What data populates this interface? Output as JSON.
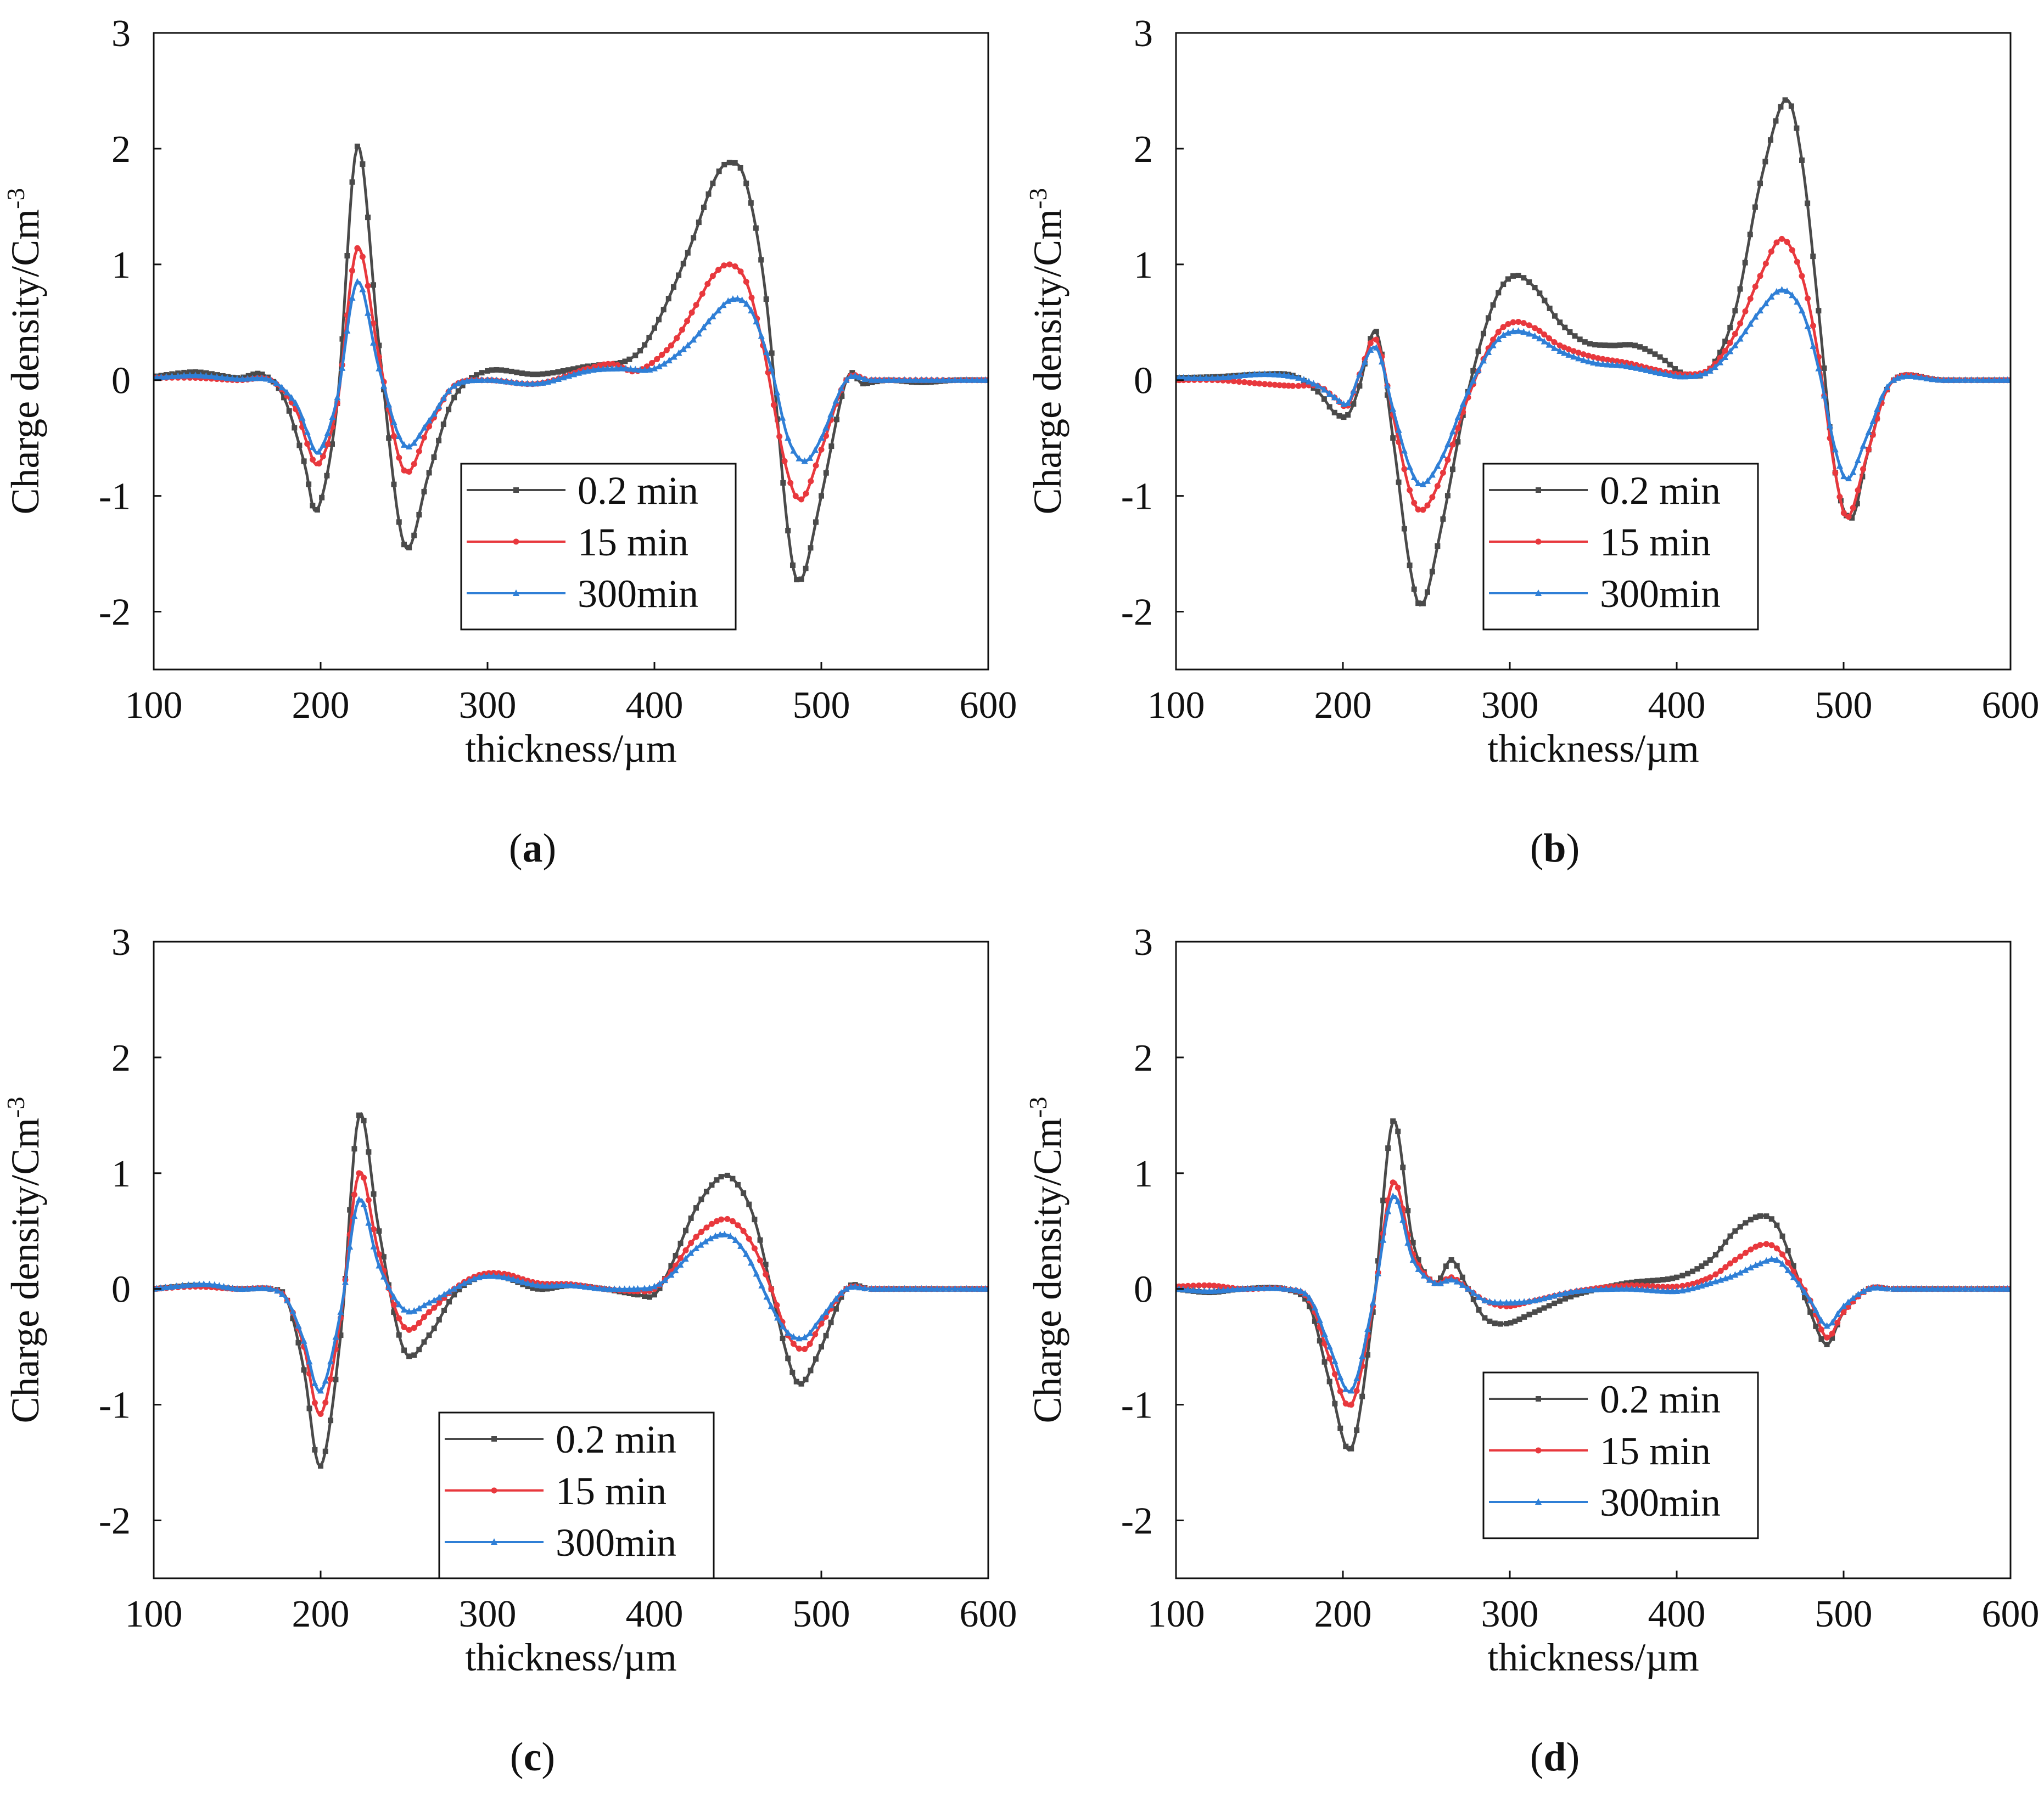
{
  "figure": {
    "legend_labels": [
      "0.2 min",
      "15  min",
      "300min"
    ],
    "colors": {
      "s0": "#4a4a4a",
      "s1": "#e8383d",
      "s2": "#2f7fd6",
      "frame": "#111111"
    }
  },
  "chart_data": [
    {
      "panel": "a",
      "caption": {
        "open": "(",
        "letter": "a",
        "close": ")"
      },
      "type": "line",
      "xlabel": "thickness/µm",
      "ylabel": "Charge density/Cm-3",
      "ylabel_main": "Charge density/Cm",
      "ylabel_sup": "-3",
      "xlim": [
        100,
        600
      ],
      "ylim": [
        -2.5,
        3
      ],
      "xticks": [
        100,
        200,
        300,
        400,
        500,
        600
      ],
      "yticks": [
        3,
        2,
        1,
        0,
        -1,
        -2
      ],
      "legend_position": "lower-right",
      "series": [
        {
          "name": "0.2 min",
          "color": "#4a4a4a",
          "marker": "square",
          "x": [
            100,
            125,
            150,
            165,
            178,
            190,
            198,
            210,
            222,
            235,
            250,
            265,
            280,
            300,
            330,
            360,
            385,
            400,
            420,
            435,
            445,
            455,
            467,
            480,
            488,
            500,
            515,
            525,
            540,
            560,
            580,
            600
          ],
          "y": [
            0.03,
            0.07,
            0.02,
            0.05,
            -0.15,
            -0.7,
            -1.12,
            -0.2,
            2.02,
            0.3,
            -1.42,
            -0.8,
            -0.15,
            0.08,
            0.05,
            0.12,
            0.18,
            0.45,
            1.1,
            1.7,
            1.88,
            1.7,
            0.7,
            -1.3,
            -1.72,
            -1.0,
            0.0,
            -0.03,
            0.0,
            -0.02,
            0.0,
            0.0
          ]
        },
        {
          "name": "15  min",
          "color": "#e8383d",
          "marker": "circle",
          "x": [
            100,
            125,
            150,
            170,
            185,
            192,
            199,
            210,
            222,
            235,
            250,
            265,
            280,
            300,
            330,
            360,
            375,
            390,
            410,
            425,
            435,
            445,
            455,
            465,
            478,
            488,
            500,
            515,
            530,
            560,
            600
          ],
          "y": [
            0.02,
            0.02,
            0.0,
            0.0,
            -0.25,
            -0.55,
            -0.72,
            -0.2,
            1.14,
            0.2,
            -0.78,
            -0.4,
            -0.05,
            0.0,
            -0.03,
            0.1,
            0.14,
            0.08,
            0.3,
            0.65,
            0.9,
            1.0,
            0.85,
            0.3,
            -0.7,
            -1.03,
            -0.6,
            0.0,
            0.0,
            0.0,
            0.0
          ]
        },
        {
          "name": "300min",
          "color": "#2f7fd6",
          "marker": "triangle",
          "x": [
            100,
            125,
            150,
            170,
            185,
            192,
            199,
            210,
            222,
            235,
            250,
            265,
            280,
            300,
            330,
            360,
            380,
            400,
            420,
            435,
            447,
            458,
            470,
            480,
            490,
            500,
            515,
            530,
            560,
            600
          ],
          "y": [
            0.02,
            0.04,
            0.01,
            0.0,
            -0.2,
            -0.45,
            -0.62,
            -0.15,
            0.85,
            0.1,
            -0.56,
            -0.35,
            -0.05,
            0.0,
            -0.03,
            0.08,
            0.1,
            0.1,
            0.3,
            0.55,
            0.7,
            0.6,
            0.1,
            -0.5,
            -0.7,
            -0.5,
            0.0,
            0.0,
            0.0,
            0.0
          ]
        }
      ]
    },
    {
      "panel": "b",
      "caption": {
        "open": "(",
        "letter": "b",
        "close": ")"
      },
      "type": "line",
      "xlabel": "thickness/µm",
      "ylabel": "Charge density/Cm-3",
      "ylabel_main": "Charge density/Cm",
      "ylabel_sup": "-3",
      "xlim": [
        100,
        600
      ],
      "ylim": [
        -2.5,
        3
      ],
      "xticks": [
        100,
        200,
        300,
        400,
        500,
        600
      ],
      "yticks": [
        3,
        2,
        1,
        0,
        -1,
        -2
      ],
      "legend_position": "lower-right",
      "series": [
        {
          "name": "0.2 min",
          "color": "#4a4a4a",
          "marker": "square",
          "x": [
            100,
            125,
            150,
            170,
            185,
            195,
            203,
            210,
            220,
            230,
            240,
            248,
            260,
            275,
            290,
            302,
            315,
            330,
            345,
            360,
            375,
            390,
            405,
            420,
            435,
            450,
            465,
            475,
            485,
            495,
            505,
            515,
            530,
            560,
            600
          ],
          "y": [
            0.02,
            0.03,
            0.05,
            0.04,
            -0.1,
            -0.28,
            -0.3,
            -0.05,
            0.42,
            -0.5,
            -1.6,
            -1.93,
            -1.2,
            -0.1,
            0.65,
            0.9,
            0.8,
            0.5,
            0.33,
            0.3,
            0.3,
            0.2,
            0.05,
            0.1,
            0.6,
            1.7,
            2.42,
            1.9,
            0.6,
            -0.8,
            -1.19,
            -0.6,
            0.0,
            0.0,
            0.0
          ]
        },
        {
          "name": "15  min",
          "color": "#e8383d",
          "marker": "circle",
          "x": [
            100,
            125,
            150,
            170,
            185,
            195,
            203,
            210,
            220,
            230,
            240,
            248,
            260,
            275,
            290,
            302,
            315,
            330,
            350,
            370,
            390,
            405,
            420,
            435,
            450,
            463,
            475,
            485,
            495,
            503,
            515,
            530,
            560,
            600
          ],
          "y": [
            0.0,
            0.0,
            -0.03,
            -0.05,
            -0.05,
            -0.15,
            -0.22,
            0.05,
            0.35,
            -0.3,
            -0.95,
            -1.12,
            -0.8,
            -0.15,
            0.35,
            0.5,
            0.45,
            0.3,
            0.2,
            0.15,
            0.08,
            0.05,
            0.1,
            0.4,
            0.9,
            1.22,
            0.9,
            0.2,
            -0.8,
            -1.18,
            -0.6,
            0.0,
            0.0,
            0.0
          ]
        },
        {
          "name": "300min",
          "color": "#2f7fd6",
          "marker": "triangle",
          "x": [
            100,
            125,
            150,
            170,
            185,
            195,
            203,
            210,
            220,
            230,
            240,
            248,
            260,
            275,
            290,
            302,
            315,
            330,
            350,
            370,
            390,
            405,
            420,
            435,
            450,
            463,
            475,
            485,
            495,
            503,
            515,
            530,
            560,
            600
          ],
          "y": [
            0.02,
            0.02,
            0.05,
            0.03,
            -0.05,
            -0.15,
            -0.2,
            0.05,
            0.28,
            -0.25,
            -0.75,
            -0.9,
            -0.65,
            -0.1,
            0.3,
            0.42,
            0.38,
            0.25,
            0.15,
            0.12,
            0.06,
            0.03,
            0.08,
            0.3,
            0.6,
            0.78,
            0.6,
            0.1,
            -0.6,
            -0.85,
            -0.45,
            0.0,
            0.0,
            0.0
          ]
        }
      ]
    },
    {
      "panel": "c",
      "caption": {
        "open": "(",
        "letter": "c",
        "close": ")"
      },
      "type": "line",
      "xlabel": "thickness/µm",
      "ylabel": "Charge density/Cm-3",
      "ylabel_main": "Charge density/Cm",
      "ylabel_sup": "-3",
      "xlim": [
        100,
        600
      ],
      "ylim": [
        -2.5,
        3
      ],
      "xticks": [
        100,
        200,
        300,
        400,
        500,
        600
      ],
      "yticks": [
        3,
        2,
        1,
        0,
        -1,
        -2
      ],
      "legend_position": "lower-center",
      "series": [
        {
          "name": "0.2 min",
          "color": "#4a4a4a",
          "marker": "square",
          "x": [
            100,
            125,
            150,
            170,
            180,
            190,
            200,
            212,
            223,
            235,
            250,
            265,
            280,
            295,
            310,
            330,
            350,
            370,
            390,
            400,
            410,
            425,
            440,
            450,
            460,
            470,
            480,
            488,
            500,
            515,
            530,
            560,
            600
          ],
          "y": [
            0.0,
            0.03,
            0.0,
            0.0,
            -0.1,
            -0.7,
            -1.53,
            -0.4,
            1.5,
            0.5,
            -0.53,
            -0.4,
            -0.05,
            0.1,
            0.1,
            0.0,
            0.03,
            0.0,
            -0.05,
            -0.05,
            0.2,
            0.7,
            0.97,
            0.9,
            0.6,
            0.0,
            -0.6,
            -0.82,
            -0.5,
            0.0,
            0.0,
            0.0,
            0.0
          ]
        },
        {
          "name": "15  min",
          "color": "#e8383d",
          "marker": "circle",
          "x": [
            100,
            125,
            150,
            170,
            180,
            190,
            200,
            212,
            223,
            235,
            250,
            265,
            280,
            295,
            310,
            330,
            350,
            370,
            390,
            400,
            410,
            425,
            440,
            450,
            460,
            470,
            480,
            490,
            500,
            515,
            530,
            560,
            600
          ],
          "y": [
            0.0,
            0.02,
            0.0,
            0.0,
            -0.1,
            -0.5,
            -1.08,
            -0.25,
            1.0,
            0.3,
            -0.33,
            -0.2,
            0.0,
            0.12,
            0.13,
            0.05,
            0.04,
            0.0,
            -0.02,
            0.0,
            0.15,
            0.45,
            0.6,
            0.55,
            0.35,
            0.0,
            -0.4,
            -0.52,
            -0.3,
            0.0,
            0.0,
            0.0,
            0.0
          ]
        },
        {
          "name": "300min",
          "color": "#2f7fd6",
          "marker": "triangle",
          "x": [
            100,
            130,
            150,
            170,
            180,
            190,
            200,
            212,
            223,
            235,
            250,
            265,
            280,
            295,
            310,
            330,
            350,
            370,
            390,
            400,
            410,
            425,
            442,
            455,
            470,
            480,
            490,
            500,
            515,
            530,
            560,
            600
          ],
          "y": [
            0.0,
            0.04,
            0.0,
            0.0,
            -0.1,
            -0.45,
            -0.88,
            -0.2,
            0.77,
            0.2,
            -0.18,
            -0.12,
            0.0,
            0.1,
            0.1,
            0.03,
            0.03,
            0.0,
            0.0,
            0.02,
            0.12,
            0.35,
            0.47,
            0.3,
            -0.15,
            -0.38,
            -0.42,
            -0.25,
            0.0,
            0.0,
            0.0,
            0.0
          ]
        }
      ]
    },
    {
      "panel": "d",
      "caption": {
        "open": "(",
        "letter": "d",
        "close": ")"
      },
      "type": "line",
      "xlabel": "thickness/µm",
      "ylabel": "Charge density/Cm-3",
      "ylabel_main": "Charge density/Cm",
      "ylabel_sup": "-3",
      "xlim": [
        100,
        600
      ],
      "ylim": [
        -2.5,
        3
      ],
      "xticks": [
        100,
        200,
        300,
        400,
        500,
        600
      ],
      "yticks": [
        3,
        2,
        1,
        0,
        -1,
        -2
      ],
      "legend_position": "lower-right",
      "series": [
        {
          "name": "0.2 min",
          "color": "#4a4a4a",
          "marker": "square",
          "x": [
            100,
            120,
            140,
            165,
            180,
            192,
            205,
            218,
            230,
            242,
            255,
            265,
            275,
            285,
            298,
            315,
            340,
            370,
            400,
            420,
            435,
            450,
            460,
            470,
            480,
            490,
            500,
            515,
            530,
            560,
            600
          ],
          "y": [
            0.0,
            -0.03,
            0.0,
            0.0,
            -0.15,
            -0.8,
            -1.38,
            -0.2,
            1.45,
            0.4,
            0.05,
            0.25,
            0.0,
            -0.25,
            -0.3,
            -0.2,
            -0.05,
            0.05,
            0.1,
            0.25,
            0.5,
            0.63,
            0.55,
            0.2,
            -0.2,
            -0.48,
            -0.2,
            0.0,
            0.0,
            0.0,
            0.0
          ]
        },
        {
          "name": "15  min",
          "color": "#e8383d",
          "marker": "circle",
          "x": [
            100,
            120,
            140,
            165,
            180,
            192,
            205,
            218,
            230,
            242,
            255,
            265,
            275,
            285,
            298,
            315,
            340,
            370,
            400,
            420,
            435,
            450,
            460,
            470,
            480,
            490,
            500,
            515,
            530,
            560,
            600
          ],
          "y": [
            0.02,
            0.03,
            0.0,
            0.0,
            -0.1,
            -0.6,
            -1.0,
            -0.15,
            0.92,
            0.3,
            0.05,
            0.1,
            0.0,
            -0.1,
            -0.15,
            -0.1,
            -0.02,
            0.03,
            0.02,
            0.1,
            0.25,
            0.38,
            0.35,
            0.15,
            -0.1,
            -0.42,
            -0.2,
            0.0,
            0.0,
            0.0,
            0.0
          ]
        },
        {
          "name": "300min",
          "color": "#2f7fd6",
          "marker": "triangle",
          "x": [
            100,
            120,
            140,
            165,
            180,
            192,
            205,
            218,
            230,
            242,
            255,
            265,
            275,
            285,
            298,
            315,
            340,
            370,
            400,
            420,
            435,
            450,
            460,
            470,
            480,
            490,
            500,
            515,
            530,
            560,
            600
          ],
          "y": [
            0.0,
            -0.02,
            0.0,
            0.0,
            -0.08,
            -0.5,
            -0.88,
            -0.12,
            0.8,
            0.25,
            0.05,
            0.08,
            0.0,
            -0.1,
            -0.12,
            -0.1,
            -0.02,
            0.0,
            -0.02,
            0.05,
            0.12,
            0.22,
            0.25,
            0.1,
            -0.1,
            -0.32,
            -0.15,
            0.0,
            0.0,
            0.0,
            0.0
          ]
        }
      ]
    }
  ]
}
